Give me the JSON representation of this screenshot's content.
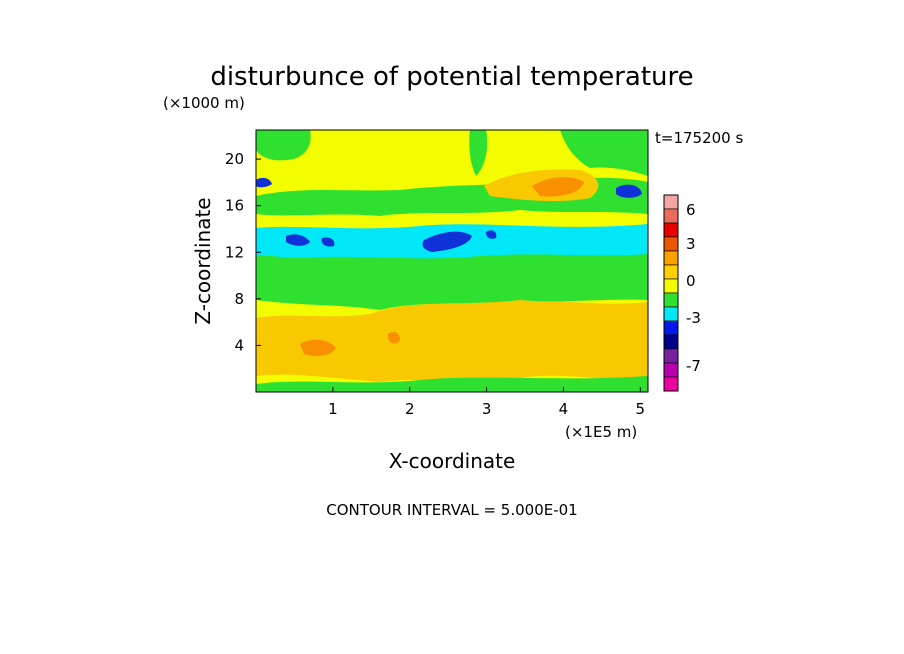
{
  "chart_data": {
    "type": "heatmap",
    "title": "disturbunce of potential temperature",
    "y_unit_label": "(×1000 m)",
    "x_unit_label": "(×1E5 m)",
    "xlabel": "X-coordinate",
    "ylabel": "Z-coordinate",
    "time_label": "t=175200 s",
    "footer": "CONTOUR INTERVAL = 5.000E-01",
    "x_ticks": [
      "1",
      "2",
      "3",
      "4",
      "5"
    ],
    "y_ticks": [
      "4",
      "8",
      "12",
      "16",
      "20"
    ],
    "xlim": [
      0,
      5.1
    ],
    "ylim": [
      0,
      22.5
    ],
    "contour_interval": 0.5,
    "colorbar": {
      "labels": [
        "6",
        "3",
        "0",
        "-3",
        "-7"
      ],
      "levels": [
        {
          "color": "#f4a4a4"
        },
        {
          "color": "#ec6c5c"
        },
        {
          "color": "#e80000"
        },
        {
          "color": "#ec5800"
        },
        {
          "color": "#f8a000"
        },
        {
          "color": "#ffd000"
        },
        {
          "color": "#f4fc00"
        },
        {
          "color": "#30e030"
        },
        {
          "color": "#00e8f8"
        },
        {
          "color": "#0018e8"
        },
        {
          "color": "#000088"
        },
        {
          "color": "#7820a0"
        },
        {
          "color": "#b800b0"
        },
        {
          "color": "#ec00a0"
        }
      ]
    },
    "field_description_levels": {
      "background": "#f4fc00",
      "warm": "#f8c800",
      "warm_strong": "#f89000",
      "neutral_low": "#30e030",
      "cold": "#00e8f8",
      "cold_strong": "#1030d8"
    }
  }
}
